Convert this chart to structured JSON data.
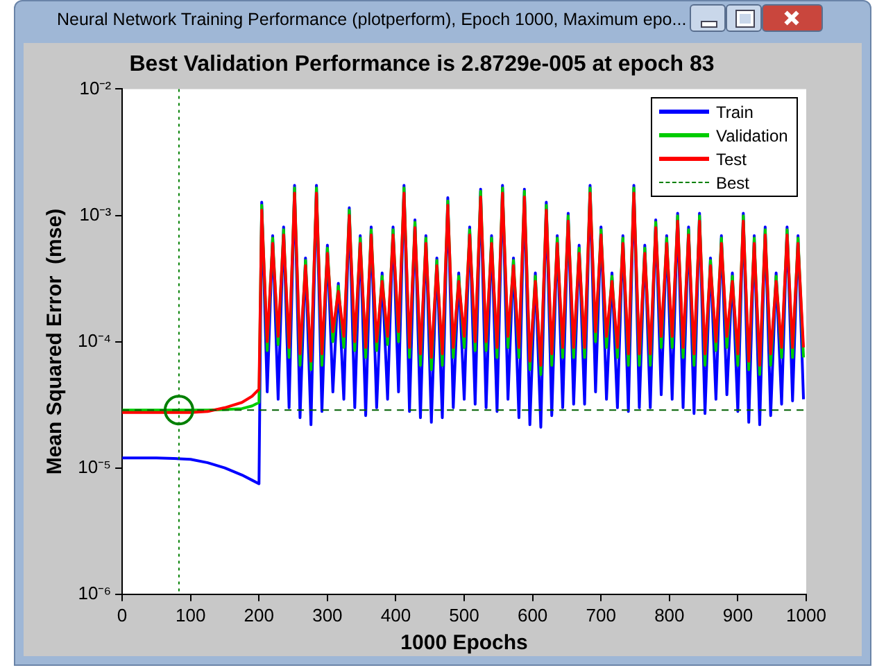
{
  "chart_data": {
    "type": "line",
    "title": "Best Validation Performance is 2.8729e-005 at epoch 83",
    "annotations": [
      "Neural Network Training Performance (plotperform), Epoch 1000, Maximum epo..."
    ],
    "xlabel": "1000 Epochs",
    "ylabel": "Mean Squared Error  (mse)",
    "log": "y",
    "grid": false,
    "legend": "top right",
    "xlim": [
      0,
      1000
    ],
    "xticks": [
      0,
      100,
      200,
      300,
      400,
      500,
      600,
      700,
      800,
      900,
      1000
    ],
    "ylim": [
      1e-06,
      0.01
    ],
    "yticks": [
      {
        "value": 1e-06,
        "label": "10⁻⁶"
      },
      {
        "value": 1e-05,
        "label": "10⁻⁵"
      },
      {
        "value": 0.0001,
        "label": "10⁻⁴"
      },
      {
        "value": 0.001,
        "label": "10⁻³"
      },
      {
        "value": 0.01,
        "label": "10⁻²"
      }
    ],
    "x": [
      0,
      25,
      50,
      75,
      100,
      125,
      150,
      175,
      190,
      200,
      204,
      212,
      220,
      228,
      236,
      244,
      252,
      260,
      268,
      276,
      284,
      292,
      300,
      308,
      316,
      324,
      332,
      340,
      348,
      356,
      364,
      372,
      380,
      388,
      396,
      404,
      412,
      420,
      428,
      436,
      444,
      452,
      460,
      468,
      476,
      484,
      492,
      500,
      508,
      516,
      524,
      532,
      540,
      548,
      556,
      564,
      572,
      580,
      588,
      596,
      604,
      612,
      620,
      628,
      636,
      644,
      652,
      660,
      668,
      676,
      684,
      692,
      700,
      708,
      716,
      724,
      732,
      740,
      748,
      756,
      764,
      772,
      780,
      788,
      796,
      804,
      812,
      820,
      828,
      836,
      844,
      852,
      860,
      868,
      876,
      884,
      892,
      900,
      908,
      916,
      924,
      932,
      940,
      948,
      956,
      964,
      972,
      980,
      988,
      996
    ],
    "series": [
      {
        "name": "Train",
        "type": "line",
        "color": "#0000ff",
        "values": [
          1.2e-05,
          1.2e-05,
          1.2e-05,
          1.19e-05,
          1.17e-05,
          1.1e-05,
          1e-05,
          8.8e-06,
          8e-06,
          7.5e-06,
          0.00127,
          4e-05,
          0.00069,
          3.5e-05,
          0.00081,
          3e-05,
          0.00173,
          2.5e-05,
          0.00046,
          2.2e-05,
          0.00173,
          2.8e-05,
          0.00058,
          4e-05,
          0.00029,
          3.5e-05,
          0.00115,
          3e-05,
          0.00069,
          2.6e-05,
          0.00081,
          3e-05,
          0.00035,
          3.5e-05,
          0.00081,
          4e-05,
          0.00173,
          2.8e-05,
          0.00092,
          2.5e-05,
          0.00069,
          2.3e-05,
          0.00046,
          2.5e-05,
          0.00138,
          3e-05,
          0.00035,
          3.5e-05,
          0.00081,
          3.2e-05,
          0.00161,
          3e-05,
          0.00069,
          2.8e-05,
          0.00173,
          3.5e-05,
          0.00046,
          2.5e-05,
          0.00161,
          2.2e-05,
          0.00035,
          2.1e-05,
          0.00127,
          2.6e-05,
          0.00069,
          3e-05,
          0.00104,
          3.2e-05,
          0.00058,
          3.2e-05,
          0.00173,
          4e-05,
          0.00081,
          3.5e-05,
          0.00035,
          3e-05,
          0.00069,
          2.8e-05,
          0.00173,
          3e-05,
          0.00058,
          3e-05,
          0.00092,
          3.8e-05,
          0.00069,
          3.5e-05,
          0.00104,
          3e-05,
          0.00081,
          2.7e-05,
          0.00104,
          2.7e-05,
          0.00046,
          3.5e-05,
          0.00069,
          3.8e-05,
          0.00035,
          2.8e-05,
          0.00104,
          2.3e-05,
          0.00069,
          2.2e-05,
          0.00081,
          2.6e-05,
          0.00035,
          3.2e-05,
          0.00081,
          3.4e-05,
          0.00069,
          3.5e-05
        ]
      },
      {
        "name": "Validation",
        "type": "line",
        "color": "#00cc00",
        "values": [
          2.87e-05,
          2.87e-05,
          2.87e-05,
          2.87e-05,
          2.87e-05,
          2.87e-05,
          2.9e-05,
          2.95e-05,
          3.1e-05,
          3.3e-05,
          0.0012,
          8.5e-05,
          0.00066,
          9.5e-05,
          0.00077,
          7.5e-05,
          0.00165,
          6.5e-05,
          0.00044,
          6e-05,
          0.00165,
          6.5e-05,
          0.00055,
          0.0001,
          0.000275,
          9e-05,
          0.0011,
          8.5e-05,
          0.00066,
          7.5e-05,
          0.00077,
          8.5e-05,
          0.00033,
          9.5e-05,
          0.00077,
          0.0001,
          0.00165,
          7.5e-05,
          0.00088,
          6.5e-05,
          0.00066,
          6e-05,
          0.00044,
          6.5e-05,
          0.0013,
          7.5e-05,
          0.00033,
          9e-05,
          0.00077,
          8.5e-05,
          0.00155,
          8.5e-05,
          0.00066,
          7.5e-05,
          0.00165,
          9e-05,
          0.00044,
          7.5e-05,
          0.00155,
          6e-05,
          0.00033,
          5.5e-05,
          0.0012,
          6.5e-05,
          0.00066,
          7.5e-05,
          0.00099,
          7.5e-05,
          0.00055,
          7.5e-05,
          0.00165,
          0.0001,
          0.00077,
          9e-05,
          0.00033,
          7.5e-05,
          0.00066,
          6.5e-05,
          0.00165,
          6.5e-05,
          0.00055,
          6.5e-05,
          0.00088,
          9e-05,
          0.00066,
          9e-05,
          0.00099,
          7.5e-05,
          0.00077,
          6.5e-05,
          0.00099,
          6.5e-05,
          0.00044,
          8.5e-05,
          0.00066,
          9e-05,
          0.00033,
          6.5e-05,
          0.00099,
          6e-05,
          0.00066,
          5.5e-05,
          0.00077,
          6.5e-05,
          0.00033,
          7.5e-05,
          0.00077,
          7.5e-05,
          0.00066,
          7.5e-05
        ]
      },
      {
        "name": "Test",
        "type": "line",
        "color": "#ff0000",
        "values": [
          2.75e-05,
          2.75e-05,
          2.75e-05,
          2.75e-05,
          2.75e-05,
          2.8e-05,
          3e-05,
          3.3e-05,
          3.7e-05,
          4.2e-05,
          0.0011,
          0.0001,
          0.0006,
          0.00011,
          0.0007,
          9e-05,
          0.0015,
          8e-05,
          0.0004,
          7e-05,
          0.0015,
          8e-05,
          0.0005,
          0.00012,
          0.00025,
          0.00011,
          0.001,
          0.0001,
          0.0006,
          9e-05,
          0.0007,
          0.0001,
          0.0003,
          0.00011,
          0.0007,
          0.00012,
          0.0015,
          9e-05,
          0.0008,
          8e-05,
          0.0006,
          7.5e-05,
          0.0004,
          8e-05,
          0.0012,
          9e-05,
          0.0003,
          0.00011,
          0.0007,
          0.0001,
          0.0014,
          0.0001,
          0.0006,
          9e-05,
          0.0015,
          0.00011,
          0.0004,
          9e-05,
          0.0014,
          7e-05,
          0.0003,
          6.5e-05,
          0.0011,
          8e-05,
          0.0006,
          9e-05,
          0.0009,
          9e-05,
          0.0005,
          9e-05,
          0.0015,
          0.00012,
          0.0007,
          0.00011,
          0.0003,
          9e-05,
          0.0006,
          8e-05,
          0.0015,
          8e-05,
          0.0005,
          8e-05,
          0.0008,
          0.00011,
          0.0006,
          0.00011,
          0.0009,
          9e-05,
          0.0007,
          8e-05,
          0.0009,
          8e-05,
          0.0004,
          0.0001,
          0.0006,
          0.00011,
          0.0003,
          8e-05,
          0.0009,
          7e-05,
          0.0006,
          6.5e-05,
          0.0007,
          8e-05,
          0.0003,
          9e-05,
          0.0007,
          9e-05,
          0.0006,
          9e-05
        ]
      },
      {
        "name": "Best",
        "type": "scatter",
        "color": "#008000",
        "x": [
          83
        ],
        "values": [
          2.8729e-05
        ],
        "marker": "circle",
        "line_style": "dashed"
      }
    ],
    "ref_lines": [
      {
        "axis": "x",
        "value": 83,
        "color": "#008000",
        "line_style": "dotted"
      },
      {
        "axis": "y",
        "value": 2.8729e-05,
        "color": "#006000",
        "line_style": "dashed"
      }
    ]
  }
}
